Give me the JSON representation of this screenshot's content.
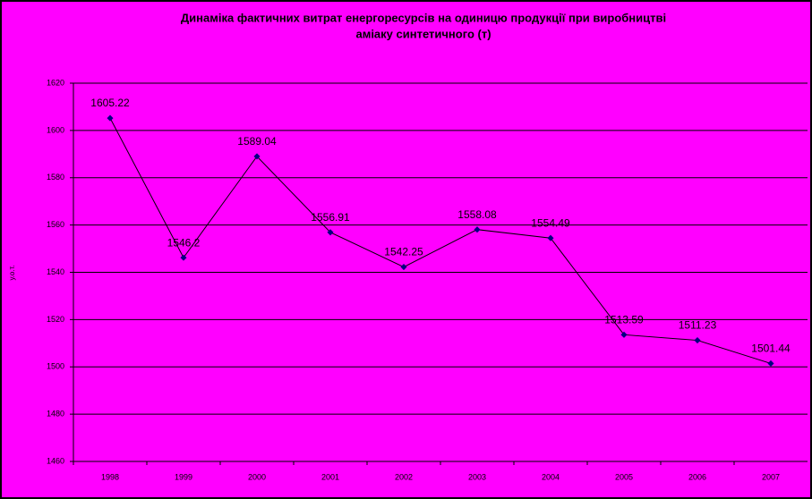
{
  "chart_data": {
    "type": "line",
    "title": "Динаміка фактичних витрат енергоресурсів на одиницю продукції при виробництві",
    "subtitle": "аміаку синтетичного (т)",
    "y_label": "у.о.т.",
    "categories": [
      "1998",
      "1999",
      "2000",
      "2001",
      "2002",
      "2003",
      "2004",
      "2005",
      "2006",
      "2007"
    ],
    "series": [
      {
        "name": "у.о.т.",
        "color": "#000080",
        "values": [
          1605.22,
          1546.2,
          1589.04,
          1556.91,
          1542.25,
          1558.08,
          1554.49,
          1513.59,
          1511.23,
          1501.44
        ]
      }
    ],
    "ylim": [
      1460,
      1620
    ],
    "yticks": [
      1460,
      1480,
      1500,
      1520,
      1540,
      1560,
      1580,
      1600,
      1620
    ],
    "grid": true
  }
}
